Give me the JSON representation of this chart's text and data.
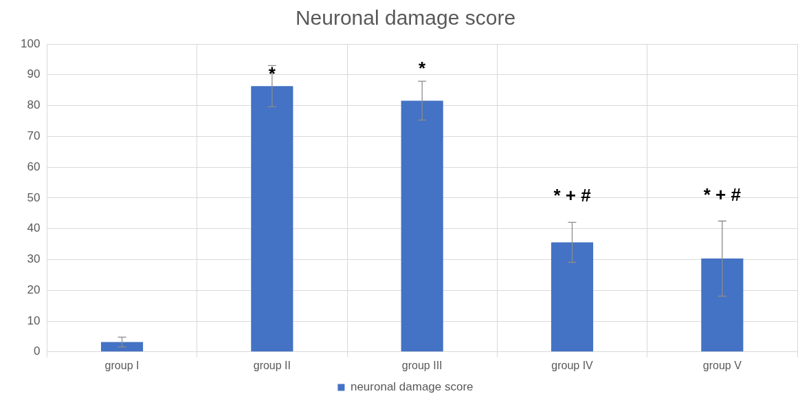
{
  "chart_data": {
    "type": "bar",
    "title": "Neuronal damage score",
    "categories": [
      "group I",
      "group II",
      "group III",
      "group IV",
      "group V"
    ],
    "series": [
      {
        "name": "neuronal damage score",
        "color": "#4472c4",
        "values": [
          3.2,
          86.3,
          81.6,
          35.6,
          30.3
        ],
        "errors": [
          1.6,
          6.7,
          6.3,
          6.5,
          12.2
        ]
      }
    ],
    "ylim": [
      0,
      100
    ],
    "yticks": [
      0,
      10,
      20,
      30,
      40,
      50,
      60,
      70,
      80,
      90,
      100
    ],
    "grid": true,
    "legend": "bottom",
    "annotations": [
      {
        "text": "*",
        "x": "group II",
        "y": 86.3
      },
      {
        "text": "*",
        "x": "group III",
        "y": 87.9
      },
      {
        "text": "* + #",
        "x": "group IV",
        "y": 42.1
      },
      {
        "text": "* + #",
        "x": "group V",
        "y": 42.5
      }
    ]
  }
}
